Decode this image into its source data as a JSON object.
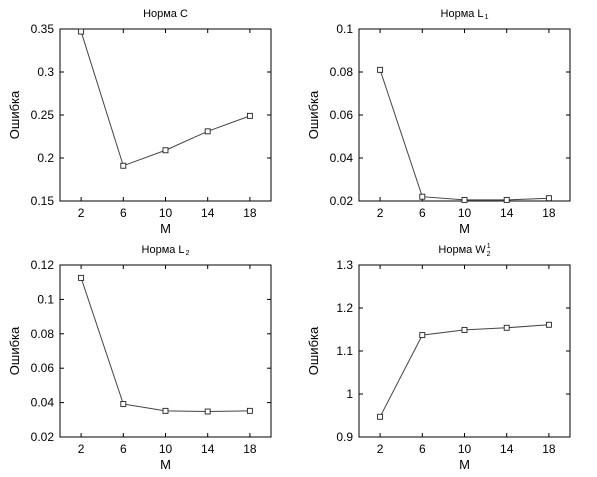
{
  "chart_data": [
    {
      "type": "line",
      "title": "Норма C",
      "xlabel": "M",
      "ylabel": "Ошибка",
      "x": [
        2,
        6,
        10,
        14,
        18
      ],
      "xticks": [
        "2",
        "6",
        "10",
        "14",
        "18"
      ],
      "yticks": [
        "0.15",
        "0.2",
        "0.25",
        "0.3",
        "0.35"
      ],
      "ylim": [
        0.15,
        0.35
      ],
      "series": [
        {
          "values": [
            0.347,
            0.191,
            0.209,
            0.231,
            0.249
          ]
        }
      ]
    },
    {
      "type": "line",
      "title": "Норма L",
      "title_sub": "1",
      "xlabel": "M",
      "ylabel": "Ошибка",
      "x": [
        2,
        6,
        10,
        14,
        18
      ],
      "xticks": [
        "2",
        "6",
        "10",
        "14",
        "18"
      ],
      "yticks": [
        "0.02",
        "0.04",
        "0.06",
        "0.08",
        "0.1"
      ],
      "ylim": [
        0.02,
        0.1
      ],
      "series": [
        {
          "values": [
            0.081,
            0.022,
            0.0205,
            0.0205,
            0.0213
          ]
        }
      ]
    },
    {
      "type": "line",
      "title": "Норма L",
      "title_sub": "2",
      "xlabel": "M",
      "ylabel": "Ошибка",
      "x": [
        2,
        6,
        10,
        14,
        18
      ],
      "xticks": [
        "2",
        "6",
        "10",
        "14",
        "18"
      ],
      "yticks": [
        "0.02",
        "0.04",
        "0.06",
        "0.08",
        "0.1",
        "0.12"
      ],
      "ylim": [
        0.02,
        0.12
      ],
      "series": [
        {
          "values": [
            0.1125,
            0.0392,
            0.0352,
            0.0348,
            0.0352
          ]
        }
      ]
    },
    {
      "type": "line",
      "title": "Норма W",
      "title_sub": "2",
      "title_sup": "1",
      "xlabel": "M",
      "ylabel": "Ошибка",
      "x": [
        2,
        6,
        10,
        14,
        18
      ],
      "xticks": [
        "2",
        "6",
        "10",
        "14",
        "18"
      ],
      "yticks": [
        "0.9",
        "1",
        "1.1",
        "1.2",
        "1.3"
      ],
      "ylim": [
        0.9,
        1.3
      ],
      "series": [
        {
          "values": [
            0.947,
            1.137,
            1.149,
            1.154,
            1.161
          ]
        }
      ]
    }
  ]
}
